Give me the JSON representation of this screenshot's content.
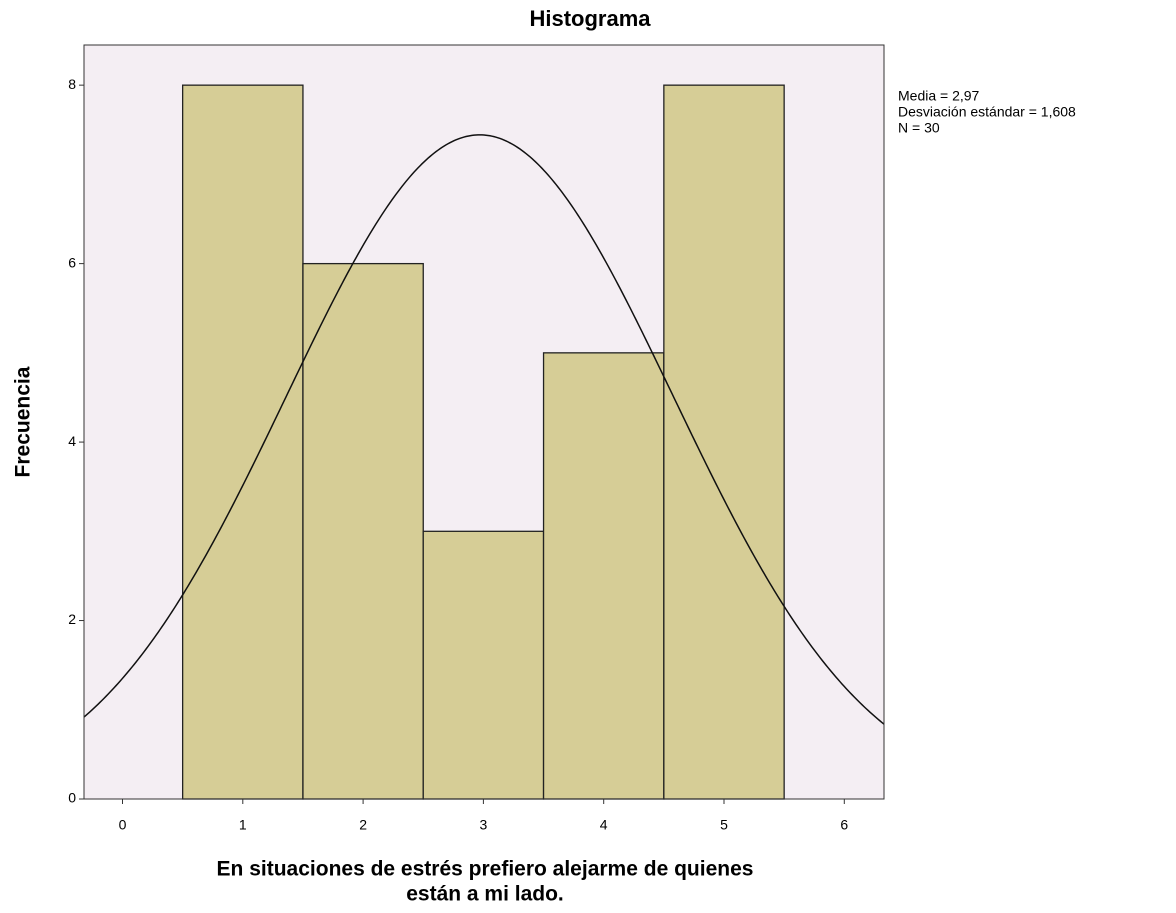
{
  "chart_data": {
    "type": "histogram",
    "title": "Histograma",
    "xlabel": [
      "En situaciones de estrés prefiero alejarme de quienes",
      "están a mi lado."
    ],
    "ylabel": "Frecuencia",
    "bins": [
      0.5,
      1.5,
      2.5,
      3.5,
      4.5,
      5.5
    ],
    "values": [
      8,
      6,
      3,
      5,
      8
    ],
    "color": "#d6cd96",
    "background": "#f4eef3",
    "xlim": [
      -0.32,
      6.33
    ],
    "xticks": [
      0,
      1,
      2,
      3,
      4,
      5,
      6
    ],
    "ylim": [
      0,
      8.45
    ],
    "yticks": [
      0,
      2,
      4,
      6,
      8
    ],
    "normal_curve": {
      "mean": 2.97,
      "sd": 1.608,
      "n": 30
    },
    "annotations": [
      "Media = 2,97",
      "Desviación estándar = 1,608",
      "N = 30"
    ]
  }
}
